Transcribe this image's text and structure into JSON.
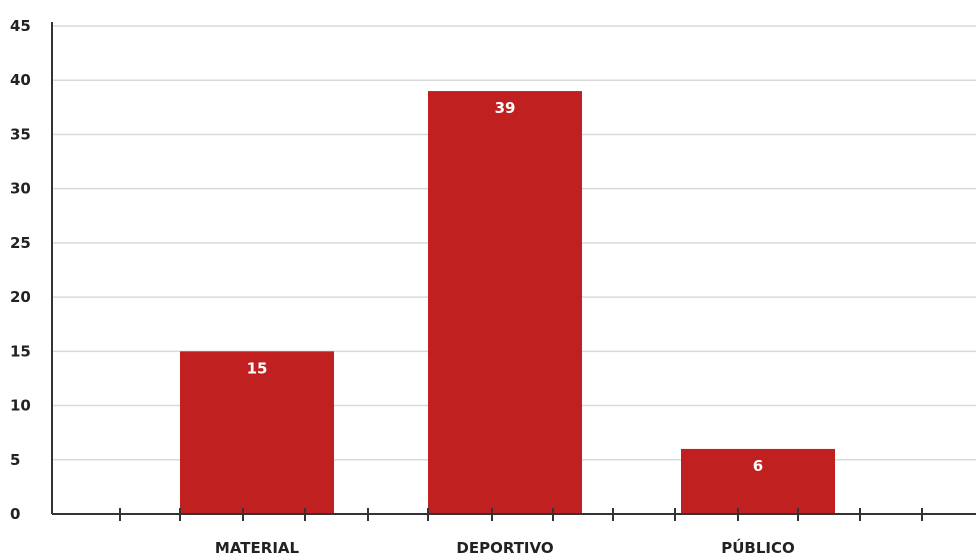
{
  "chart_data": {
    "type": "bar",
    "title": "",
    "xlabel": "",
    "ylabel": "",
    "categories": [
      "MATERIAL",
      "DEPORTIVO",
      "PÚBLICO"
    ],
    "values": [
      15,
      39,
      6
    ],
    "data_labels": [
      "15",
      "39",
      "6"
    ],
    "ylim": [
      0,
      45
    ],
    "yticks": [
      0,
      5,
      10,
      15,
      20,
      25,
      30,
      35,
      40,
      45
    ],
    "ytick_labels": [
      "0",
      "5",
      "10",
      "15",
      "20",
      "25",
      "30",
      "35",
      "40",
      "45"
    ],
    "grid": true,
    "legend": "none",
    "colors": {
      "bar": "#c0201f",
      "grid": "#d9d9d9",
      "axis": "#333333",
      "label_text": "#ffffff"
    }
  }
}
